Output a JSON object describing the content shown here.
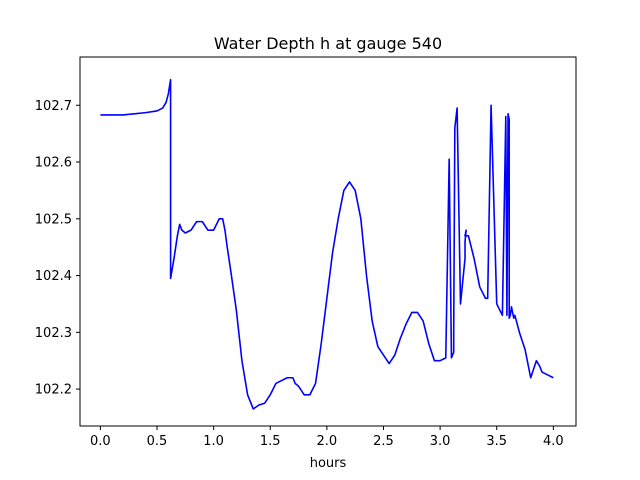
{
  "chart_data": {
    "type": "line",
    "title": "Water Depth h at gauge 540",
    "xlabel": "hours",
    "ylabel": "",
    "xlim": [
      -0.18,
      4.2
    ],
    "ylim": [
      102.135,
      102.785
    ],
    "x_ticks": [
      0.0,
      0.5,
      1.0,
      1.5,
      2.0,
      2.5,
      3.0,
      3.5,
      4.0
    ],
    "x_tick_labels": [
      "0.0",
      "0.5",
      "1.0",
      "1.5",
      "2.0",
      "2.5",
      "3.0",
      "3.5",
      "4.0"
    ],
    "y_ticks": [
      102.2,
      102.3,
      102.4,
      102.5,
      102.6,
      102.7
    ],
    "y_tick_labels": [
      "102.2",
      "102.3",
      "102.4",
      "102.5",
      "102.6",
      "102.7"
    ],
    "grid": false,
    "line_color": "#0000ff",
    "series": [
      {
        "x": [
          0.0,
          0.1,
          0.2,
          0.3,
          0.4,
          0.5,
          0.55,
          0.58,
          0.6,
          0.62,
          0.62,
          0.65,
          0.68,
          0.7,
          0.72,
          0.75,
          0.8,
          0.85,
          0.9,
          0.95,
          1.0,
          1.05,
          1.08,
          1.1,
          1.12,
          1.15,
          1.2,
          1.25,
          1.3,
          1.35,
          1.4,
          1.45,
          1.5,
          1.55,
          1.6,
          1.65,
          1.7,
          1.72,
          1.75,
          1.8,
          1.85,
          1.9,
          1.95,
          2.0,
          2.05,
          2.1,
          2.15,
          2.2,
          2.25,
          2.28,
          2.3,
          2.35,
          2.4,
          2.45,
          2.5,
          2.55,
          2.6,
          2.65,
          2.7,
          2.75,
          2.8,
          2.85,
          2.9,
          2.95,
          3.0,
          3.05,
          3.08,
          3.1,
          3.12,
          3.12,
          3.13,
          3.15,
          3.18,
          3.2,
          3.22,
          3.22,
          3.23,
          3.22,
          3.25,
          3.3,
          3.35,
          3.4,
          3.42,
          3.45,
          3.5,
          3.55,
          3.58,
          3.59,
          3.6,
          3.61,
          3.61,
          3.62,
          3.62,
          3.63,
          3.64,
          3.65,
          3.66,
          3.7,
          3.75,
          3.8,
          3.85,
          3.88,
          3.9,
          3.95,
          4.0
        ],
        "y": [
          102.683,
          102.683,
          102.683,
          102.685,
          102.687,
          102.69,
          102.695,
          102.705,
          102.72,
          102.745,
          102.395,
          102.43,
          102.47,
          102.49,
          102.48,
          102.475,
          102.48,
          102.495,
          102.495,
          102.48,
          102.48,
          102.5,
          102.5,
          102.48,
          102.45,
          102.41,
          102.34,
          102.25,
          102.19,
          102.165,
          102.172,
          102.175,
          102.19,
          102.21,
          102.215,
          102.22,
          102.22,
          102.21,
          102.205,
          102.19,
          102.19,
          102.21,
          102.28,
          102.36,
          102.44,
          102.5,
          102.55,
          102.565,
          102.55,
          102.52,
          102.5,
          102.4,
          102.32,
          102.275,
          102.26,
          102.245,
          102.26,
          102.29,
          102.315,
          102.335,
          102.335,
          102.32,
          102.28,
          102.25,
          102.25,
          102.255,
          102.605,
          102.255,
          102.265,
          102.3,
          102.66,
          102.695,
          102.35,
          102.39,
          102.43,
          102.46,
          102.48,
          102.47,
          102.47,
          102.43,
          102.38,
          102.36,
          102.36,
          102.7,
          102.35,
          102.33,
          102.68,
          102.33,
          102.685,
          102.675,
          102.325,
          102.33,
          102.33,
          102.345,
          102.335,
          102.325,
          102.33,
          102.3,
          102.27,
          102.22,
          102.25,
          102.24,
          102.23,
          102.225,
          102.22
        ]
      }
    ]
  }
}
